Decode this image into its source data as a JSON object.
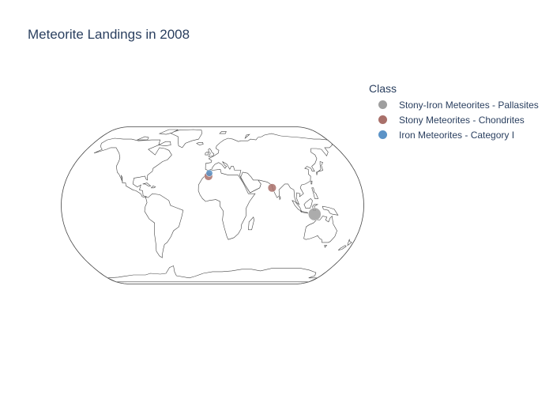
{
  "title": "Meteorite Landings in 2008",
  "legend": {
    "title": "Class",
    "items": [
      {
        "label": "Stony-Iron Meteorites - Pallasites",
        "color": "#9e9e9e"
      },
      {
        "label": "Stony Meteorites - Chondrites",
        "color": "#a9706a"
      },
      {
        "label": "Iron Meteorites - Category I",
        "color": "#5b93c7"
      }
    ]
  },
  "chart_data": {
    "type": "scatter_geo",
    "projection": "natural earth",
    "title": "Meteorite Landings in 2008",
    "legend_title": "Class",
    "legend_position": "top-right",
    "series": [
      {
        "name": "Stony-Iron Meteorites - Pallasites",
        "color": "#9e9e9e",
        "points": [
          {
            "lon": 122,
            "lat": -9,
            "size": 3
          }
        ]
      },
      {
        "name": "Stony Meteorites - Chondrites",
        "color": "#a9706a",
        "points": [
          {
            "lon": -5,
            "lat": 30,
            "size": 1
          },
          {
            "lon": 72,
            "lat": 18,
            "size": 1
          }
        ]
      },
      {
        "name": "Iron Meteorites - Category I",
        "color": "#5b93c7",
        "points": [
          {
            "lon": -4,
            "lat": 33,
            "size": 0.5
          }
        ]
      }
    ]
  }
}
